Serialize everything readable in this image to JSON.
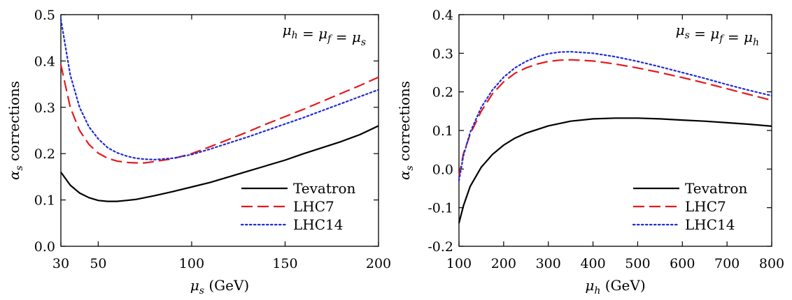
{
  "chart_data": [
    {
      "type": "line",
      "xlabel": "μs (GeV)",
      "ylabel": "αs corrections",
      "annotation": "μh = μf = μs",
      "xlim": [
        30,
        200
      ],
      "ylim": [
        0.0,
        0.5
      ],
      "xticks": [
        30,
        50,
        100,
        150,
        200
      ],
      "xtick_labels": [
        "30",
        "50",
        "100",
        "150",
        "200"
      ],
      "yticks": [
        0.0,
        0.1,
        0.2,
        0.3,
        0.4,
        0.5
      ],
      "ytick_labels": [
        "0.0",
        "0.1",
        "0.2",
        "0.3",
        "0.4",
        "0.5"
      ],
      "grid": false,
      "legend_position": "bottom-right",
      "series": [
        {
          "name": "Tevatron",
          "color": "#000000",
          "dash": "solid",
          "x": [
            30,
            35,
            40,
            45,
            50,
            55,
            60,
            65,
            70,
            80,
            90,
            100,
            110,
            120,
            130,
            140,
            150,
            160,
            170,
            180,
            190,
            200
          ],
          "y": [
            0.16,
            0.132,
            0.115,
            0.105,
            0.099,
            0.097,
            0.097,
            0.099,
            0.101,
            0.109,
            0.118,
            0.128,
            0.138,
            0.15,
            0.162,
            0.174,
            0.186,
            0.2,
            0.213,
            0.226,
            0.241,
            0.26
          ]
        },
        {
          "name": "LHC7",
          "color": "#e41a1c",
          "dash": "dashed",
          "x": [
            30,
            35,
            40,
            45,
            50,
            55,
            60,
            65,
            70,
            75,
            80,
            90,
            100,
            110,
            120,
            130,
            140,
            150,
            160,
            170,
            180,
            190,
            200
          ],
          "y": [
            0.392,
            0.3,
            0.25,
            0.22,
            0.201,
            0.19,
            0.184,
            0.181,
            0.18,
            0.18,
            0.183,
            0.189,
            0.2,
            0.215,
            0.231,
            0.247,
            0.264,
            0.28,
            0.296,
            0.313,
            0.33,
            0.347,
            0.365
          ]
        },
        {
          "name": "LHC14",
          "color": "#1f2bd6",
          "dash": "dotted",
          "x": [
            30,
            35,
            40,
            45,
            50,
            55,
            60,
            65,
            70,
            75,
            80,
            90,
            100,
            110,
            120,
            130,
            140,
            150,
            160,
            170,
            180,
            190,
            200
          ],
          "y": [
            0.49,
            0.37,
            0.3,
            0.258,
            0.232,
            0.213,
            0.202,
            0.195,
            0.19,
            0.188,
            0.187,
            0.19,
            0.198,
            0.21,
            0.223,
            0.236,
            0.25,
            0.264,
            0.278,
            0.293,
            0.308,
            0.323,
            0.338
          ]
        }
      ]
    },
    {
      "type": "line",
      "xlabel": "μh (GeV)",
      "ylabel": "αs corrections",
      "annotation": "μs = μf = μh",
      "xlim": [
        100,
        800
      ],
      "ylim": [
        -0.2,
        0.4
      ],
      "xticks": [
        100,
        200,
        300,
        400,
        500,
        600,
        700,
        800
      ],
      "xtick_labels": [
        "100",
        "200",
        "300",
        "400",
        "500",
        "600",
        "700",
        "800"
      ],
      "yticks": [
        -0.2,
        -0.1,
        0.0,
        0.1,
        0.2,
        0.3,
        0.4
      ],
      "ytick_labels": [
        "-0.2",
        "-0.1",
        "0.0",
        "0.1",
        "0.2",
        "0.3",
        "0.4"
      ],
      "grid": false,
      "legend_position": "bottom-right",
      "series": [
        {
          "name": "Tevatron",
          "color": "#000000",
          "dash": "solid",
          "x": [
            100,
            110,
            125,
            150,
            175,
            200,
            225,
            250,
            300,
            350,
            400,
            450,
            500,
            550,
            600,
            650,
            700,
            750,
            800
          ],
          "y": [
            -0.14,
            -0.095,
            -0.045,
            0.005,
            0.038,
            0.062,
            0.08,
            0.093,
            0.112,
            0.124,
            0.13,
            0.132,
            0.132,
            0.13,
            0.127,
            0.124,
            0.12,
            0.116,
            0.111
          ]
        },
        {
          "name": "LHC7",
          "color": "#e41a1c",
          "dash": "dashed",
          "x": [
            100,
            110,
            125,
            150,
            175,
            200,
            225,
            250,
            275,
            300,
            325,
            350,
            400,
            450,
            500,
            550,
            600,
            650,
            700,
            750,
            800
          ],
          "y": [
            -0.02,
            0.04,
            0.09,
            0.15,
            0.195,
            0.226,
            0.248,
            0.262,
            0.272,
            0.279,
            0.282,
            0.283,
            0.28,
            0.272,
            0.262,
            0.25,
            0.237,
            0.223,
            0.208,
            0.193,
            0.178
          ]
        },
        {
          "name": "LHC14",
          "color": "#1f2bd6",
          "dash": "dotted",
          "x": [
            100,
            110,
            125,
            150,
            175,
            200,
            225,
            250,
            275,
            300,
            325,
            350,
            400,
            450,
            500,
            550,
            600,
            650,
            700,
            750,
            800
          ],
          "y": [
            -0.03,
            0.035,
            0.095,
            0.16,
            0.205,
            0.238,
            0.262,
            0.279,
            0.291,
            0.299,
            0.303,
            0.304,
            0.3,
            0.291,
            0.279,
            0.265,
            0.25,
            0.235,
            0.219,
            0.204,
            0.19
          ]
        }
      ]
    }
  ]
}
